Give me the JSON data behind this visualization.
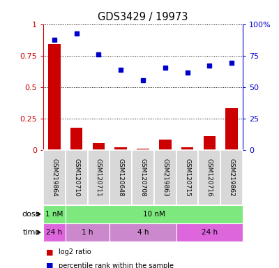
{
  "title": "GDS3429 / 19973",
  "samples": [
    "GSM219864",
    "GSM120710",
    "GSM120711",
    "GSM120648",
    "GSM120708",
    "GSM219863",
    "GSM120715",
    "GSM120716",
    "GSM219862"
  ],
  "log2_ratio": [
    0.84,
    0.18,
    0.055,
    0.025,
    0.01,
    0.085,
    0.02,
    0.11,
    0.335
  ],
  "percentile_rank": [
    0.875,
    0.925,
    0.76,
    0.635,
    0.555,
    0.655,
    0.615,
    0.67,
    0.695
  ],
  "bar_color": "#cc0000",
  "dot_color": "#0000cc",
  "yticks_left": [
    0,
    0.25,
    0.5,
    0.75,
    1.0
  ],
  "ytick_left_labels": [
    "0",
    "0.25",
    "0.5",
    "0.75",
    "1"
  ],
  "yticks_right": [
    0,
    25,
    50,
    75,
    100
  ],
  "ytick_right_labels": [
    "0",
    "25",
    "50",
    "75",
    "100%"
  ],
  "ylim_left": [
    0,
    1.0
  ],
  "dose_labels": [
    {
      "text": "1 nM",
      "start": 0,
      "end": 1,
      "color": "#7de87d"
    },
    {
      "text": "10 nM",
      "start": 1,
      "end": 9,
      "color": "#7de87d"
    }
  ],
  "time_labels": [
    {
      "text": "24 h",
      "start": 0,
      "end": 1,
      "color": "#dd66dd"
    },
    {
      "text": "1 h",
      "start": 1,
      "end": 3,
      "color": "#cc88cc"
    },
    {
      "text": "4 h",
      "start": 3,
      "end": 6,
      "color": "#cc88cc"
    },
    {
      "text": "24 h",
      "start": 6,
      "end": 9,
      "color": "#dd66dd"
    }
  ],
  "dose_row_label": "dose",
  "time_row_label": "time",
  "legend_bar_label": "log2 ratio",
  "legend_dot_label": "percentile rank within the sample",
  "left_axis_color": "#cc0000",
  "right_axis_color": "#0000cc",
  "bg_color": "#d8d8d8",
  "plot_bg": "#ffffff",
  "grid_color": "black"
}
